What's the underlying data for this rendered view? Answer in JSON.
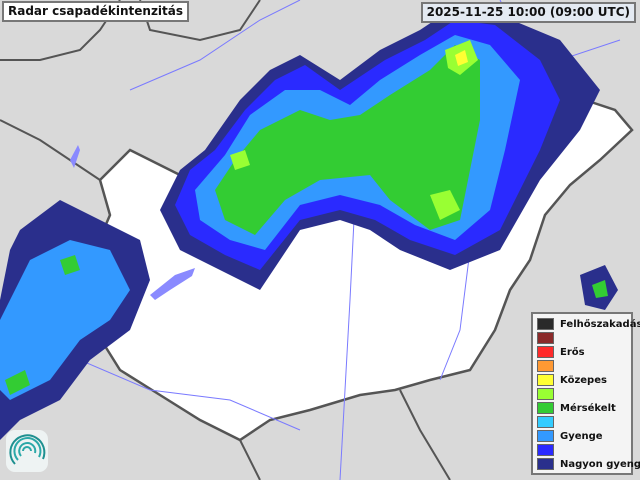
{
  "title": "Radar csapadékintenzitás",
  "timestamp": "2025-11-25 10:00 (09:00 UTC)",
  "legend": [
    {
      "label": "Felhőszakadás",
      "color": "#2a2a2a"
    },
    {
      "label": "",
      "color": "#8b2a2a"
    },
    {
      "label": "Erős",
      "color": "#ff2a2a"
    },
    {
      "label": "",
      "color": "#ff9933"
    },
    {
      "label": "Közepes",
      "color": "#ffff33"
    },
    {
      "label": "",
      "color": "#99ff33"
    },
    {
      "label": "Mérsékelt",
      "color": "#33cc33"
    },
    {
      "label": "",
      "color": "#33ccff"
    },
    {
      "label": "Gyenge",
      "color": "#3399ff"
    },
    {
      "label": "",
      "color": "#2a2aff"
    },
    {
      "label": "Nagyon gyenge",
      "color": "#2a2f8c"
    }
  ],
  "colors": {
    "background": "#d9d9d9",
    "country": "#ffffff",
    "border": "#555555",
    "rivers": "#7a7aff"
  },
  "logo": "omsz-spiral-logo"
}
